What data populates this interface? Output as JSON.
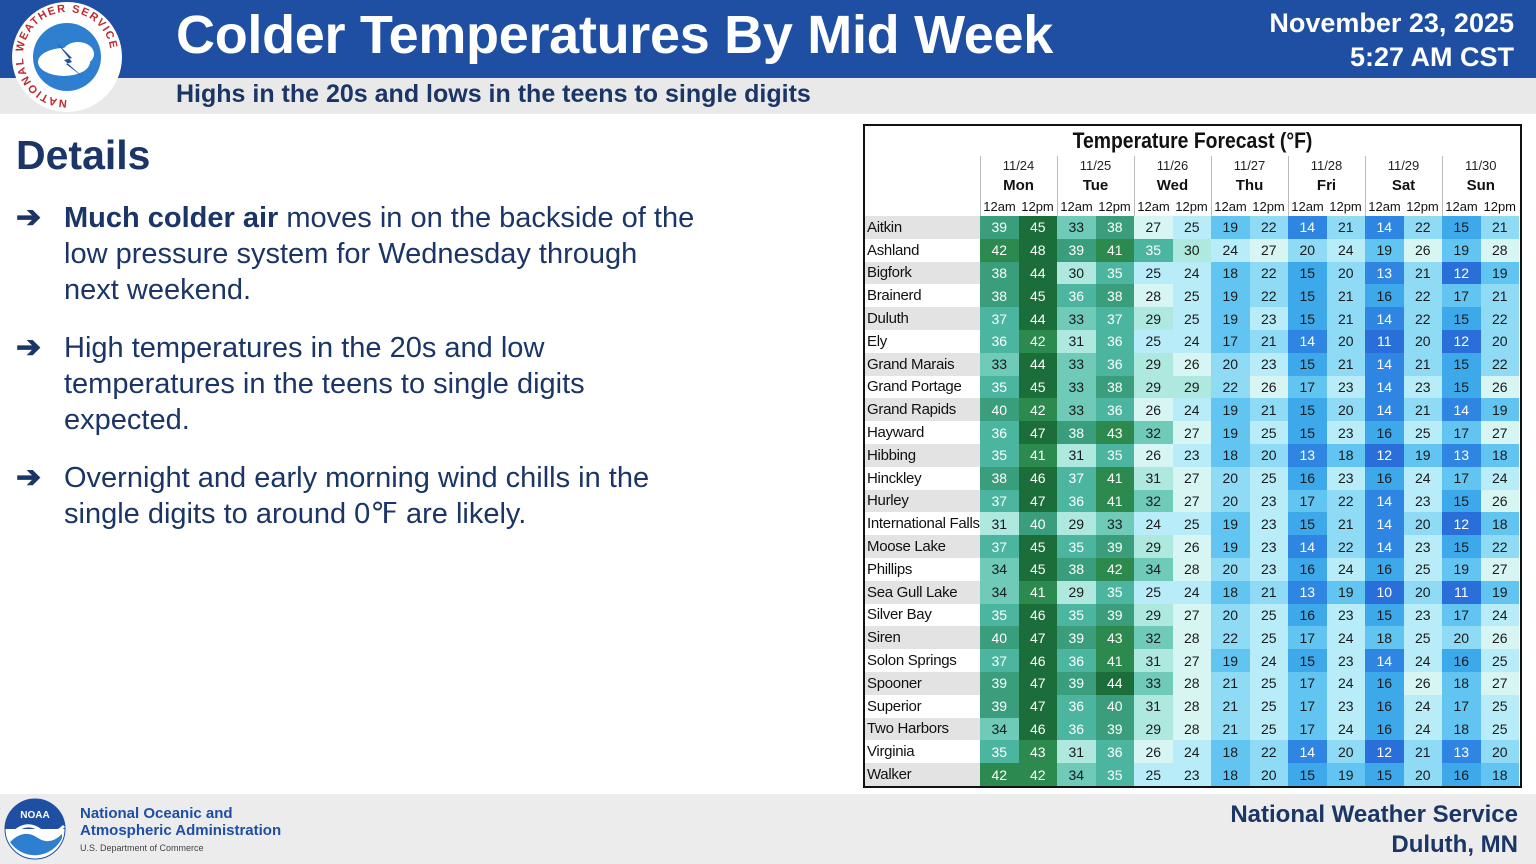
{
  "header": {
    "title": "Colder Temperatures By Mid Week",
    "subtitle": "Highs in the 20s and lows in the teens to single digits",
    "date": "November 23, 2025",
    "time": "5:27 AM CST",
    "logo_text": "NATIONAL WEATHER SERVICE"
  },
  "details": {
    "heading": "Details",
    "bullets": [
      {
        "bold": "Much colder air",
        "text": " moves in on the backside of the low pressure system for Wednesday through next weekend."
      },
      {
        "bold": "",
        "text": "High temperatures in the 20s and low temperatures in the teens to single digits expected."
      },
      {
        "bold": "",
        "text": "Overnight and early morning wind chills in the single digits to around 0℉ are likely."
      }
    ]
  },
  "forecast_table": {
    "title": "Temperature Forecast (°F)",
    "days": [
      {
        "date": "11/24",
        "day": "Mon"
      },
      {
        "date": "11/25",
        "day": "Tue"
      },
      {
        "date": "11/26",
        "day": "Wed"
      },
      {
        "date": "11/27",
        "day": "Thu"
      },
      {
        "date": "11/28",
        "day": "Fri"
      },
      {
        "date": "11/29",
        "day": "Sat"
      },
      {
        "date": "11/30",
        "day": "Sun"
      }
    ],
    "time_labels": [
      "12am",
      "12pm"
    ],
    "rows": [
      {
        "name": "Aitkin",
        "values": [
          39,
          45,
          33,
          38,
          27,
          25,
          19,
          22,
          14,
          21,
          14,
          22,
          15,
          21
        ]
      },
      {
        "name": "Ashland",
        "values": [
          42,
          48,
          39,
          41,
          35,
          30,
          24,
          27,
          20,
          24,
          19,
          26,
          19,
          28
        ]
      },
      {
        "name": "Bigfork",
        "values": [
          38,
          44,
          30,
          35,
          25,
          24,
          18,
          22,
          15,
          20,
          13,
          21,
          12,
          19
        ]
      },
      {
        "name": "Brainerd",
        "values": [
          38,
          45,
          36,
          38,
          28,
          25,
          19,
          22,
          15,
          21,
          16,
          22,
          17,
          21
        ]
      },
      {
        "name": "Duluth",
        "values": [
          37,
          44,
          33,
          37,
          29,
          25,
          19,
          23,
          15,
          21,
          14,
          22,
          15,
          22
        ]
      },
      {
        "name": "Ely",
        "values": [
          36,
          42,
          31,
          36,
          25,
          24,
          17,
          21,
          14,
          20,
          11,
          20,
          12,
          20
        ]
      },
      {
        "name": "Grand Marais",
        "values": [
          33,
          44,
          33,
          36,
          29,
          26,
          20,
          23,
          15,
          21,
          14,
          21,
          15,
          22
        ]
      },
      {
        "name": "Grand Portage",
        "values": [
          35,
          45,
          33,
          38,
          29,
          29,
          22,
          26,
          17,
          23,
          14,
          23,
          15,
          26
        ]
      },
      {
        "name": "Grand Rapids",
        "values": [
          40,
          42,
          33,
          36,
          26,
          24,
          19,
          21,
          15,
          20,
          14,
          21,
          14,
          19
        ]
      },
      {
        "name": "Hayward",
        "values": [
          36,
          47,
          38,
          43,
          32,
          27,
          19,
          25,
          15,
          23,
          16,
          25,
          17,
          27
        ]
      },
      {
        "name": "Hibbing",
        "values": [
          35,
          41,
          31,
          35,
          26,
          23,
          18,
          20,
          13,
          18,
          12,
          19,
          13,
          18
        ]
      },
      {
        "name": "Hinckley",
        "values": [
          38,
          46,
          37,
          41,
          31,
          27,
          20,
          25,
          16,
          23,
          16,
          24,
          17,
          24
        ]
      },
      {
        "name": "Hurley",
        "values": [
          37,
          47,
          36,
          41,
          32,
          27,
          20,
          23,
          17,
          22,
          14,
          23,
          15,
          26
        ]
      },
      {
        "name": "International Falls",
        "values": [
          31,
          40,
          29,
          33,
          24,
          25,
          19,
          23,
          15,
          21,
          14,
          20,
          12,
          18
        ]
      },
      {
        "name": "Moose Lake",
        "values": [
          37,
          45,
          35,
          39,
          29,
          26,
          19,
          23,
          14,
          22,
          14,
          23,
          15,
          22
        ]
      },
      {
        "name": "Phillips",
        "values": [
          34,
          45,
          38,
          42,
          34,
          28,
          20,
          23,
          16,
          24,
          16,
          25,
          19,
          27
        ]
      },
      {
        "name": "Sea Gull Lake",
        "values": [
          34,
          41,
          29,
          35,
          25,
          24,
          18,
          21,
          13,
          19,
          10,
          20,
          11,
          19
        ]
      },
      {
        "name": "Silver Bay",
        "values": [
          35,
          46,
          35,
          39,
          29,
          27,
          20,
          25,
          16,
          23,
          15,
          23,
          17,
          24
        ]
      },
      {
        "name": "Siren",
        "values": [
          40,
          47,
          39,
          43,
          32,
          28,
          22,
          25,
          17,
          24,
          18,
          25,
          20,
          26
        ]
      },
      {
        "name": "Solon Springs",
        "values": [
          37,
          46,
          36,
          41,
          31,
          27,
          19,
          24,
          15,
          23,
          14,
          24,
          16,
          25
        ]
      },
      {
        "name": "Spooner",
        "values": [
          39,
          47,
          39,
          44,
          33,
          28,
          21,
          25,
          17,
          24,
          16,
          26,
          18,
          27
        ]
      },
      {
        "name": "Superior",
        "values": [
          39,
          47,
          36,
          40,
          31,
          28,
          21,
          25,
          17,
          23,
          16,
          24,
          17,
          25
        ]
      },
      {
        "name": "Two Harbors",
        "values": [
          34,
          46,
          36,
          39,
          29,
          28,
          21,
          25,
          17,
          24,
          16,
          24,
          18,
          25
        ]
      },
      {
        "name": "Virginia",
        "values": [
          35,
          43,
          31,
          36,
          26,
          24,
          18,
          22,
          14,
          20,
          12,
          21,
          13,
          20
        ]
      },
      {
        "name": "Walker",
        "values": [
          42,
          42,
          34,
          35,
          25,
          23,
          18,
          20,
          15,
          19,
          15,
          20,
          16,
          18
        ]
      }
    ]
  },
  "footer": {
    "noaa_line1": "National Oceanic and",
    "noaa_line2": "Atmospheric Administration",
    "noaa_sub": "U.S. Department of Commerce",
    "noaa_logo_text": "NOAA",
    "nws_line1": "National Weather Service",
    "nws_line2": "Duluth, MN"
  }
}
